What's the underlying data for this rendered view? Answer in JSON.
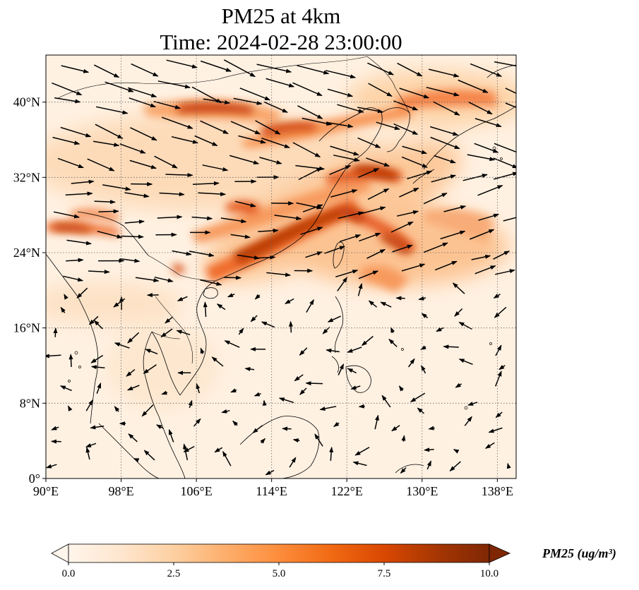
{
  "title": {
    "line1": "PM25 at 4km",
    "line2": "Time: 2024-02-28 23:00:00"
  },
  "map": {
    "lon_range": [
      90,
      140
    ],
    "lat_range": [
      0,
      45
    ],
    "lon_ticks": [
      90,
      98,
      106,
      114,
      122,
      130,
      138
    ],
    "lon_tick_labels": [
      "90°E",
      "98°E",
      "106°E",
      "114°E",
      "122°E",
      "130°E",
      "138°E"
    ],
    "lat_ticks": [
      0,
      8,
      16,
      24,
      32,
      40
    ],
    "lat_tick_labels": [
      "0°",
      "8°N",
      "16°N",
      "24°N",
      "32°N",
      "40°N"
    ],
    "gridlines": true,
    "field_colormap": [
      "#fff5eb",
      "#fdd0a2",
      "#fd8d3c",
      "#d94801",
      "#7f2704"
    ],
    "vectors": "wind arrows"
  },
  "colorbar": {
    "label": "PM25 (ug/m³)",
    "range": [
      0.0,
      10.0
    ],
    "ticks": [
      0.0,
      2.5,
      5.0,
      7.5,
      10.0
    ],
    "tick_labels": [
      "0.0",
      "2.5",
      "5.0",
      "7.5",
      "10.0"
    ],
    "extend": "both",
    "colors": [
      "#fff5eb",
      "#fee6ce",
      "#fdd0a2",
      "#fdae6b",
      "#fd8d3c",
      "#f16913",
      "#d94801",
      "#a63603",
      "#7f2704"
    ]
  }
}
